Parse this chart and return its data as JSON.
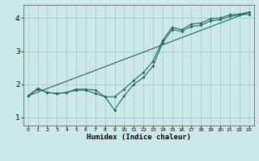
{
  "title": "",
  "xlabel": "Humidex (Indice chaleur)",
  "ylabel": "",
  "bg_color": "#cce8e8",
  "grid_color": "#aacccc",
  "line_color": "#1a6b5a",
  "xlim": [
    -0.5,
    23.5
  ],
  "ylim": [
    0.75,
    4.4
  ],
  "xticks": [
    0,
    1,
    2,
    3,
    4,
    5,
    6,
    7,
    8,
    9,
    10,
    11,
    12,
    13,
    14,
    15,
    16,
    17,
    18,
    19,
    20,
    21,
    22,
    23
  ],
  "yticks": [
    1,
    2,
    3,
    4
  ],
  "line1_x": [
    0,
    1,
    2,
    3,
    4,
    5,
    6,
    7,
    8,
    9,
    10,
    11,
    12,
    13,
    14,
    15,
    16,
    17,
    18,
    19,
    20,
    21,
    22,
    23
  ],
  "line1_y": [
    1.65,
    1.85,
    1.75,
    1.72,
    1.75,
    1.82,
    1.82,
    1.72,
    1.62,
    1.22,
    1.65,
    2.0,
    2.2,
    2.55,
    3.25,
    3.65,
    3.6,
    3.75,
    3.78,
    3.92,
    3.95,
    4.05,
    4.1,
    4.12
  ],
  "line2_x": [
    0,
    1,
    2,
    3,
    4,
    5,
    6,
    7,
    8,
    9,
    10,
    11,
    12,
    13,
    14,
    15,
    16,
    17,
    18,
    19,
    20,
    21,
    22,
    23
  ],
  "line2_y": [
    1.65,
    1.88,
    1.75,
    1.72,
    1.75,
    1.85,
    1.85,
    1.82,
    1.62,
    1.62,
    1.85,
    2.12,
    2.35,
    2.7,
    3.32,
    3.72,
    3.65,
    3.82,
    3.85,
    3.98,
    4.0,
    4.1,
    4.12,
    4.18
  ],
  "line3_x": [
    0,
    23
  ],
  "line3_y": [
    1.65,
    4.18
  ]
}
